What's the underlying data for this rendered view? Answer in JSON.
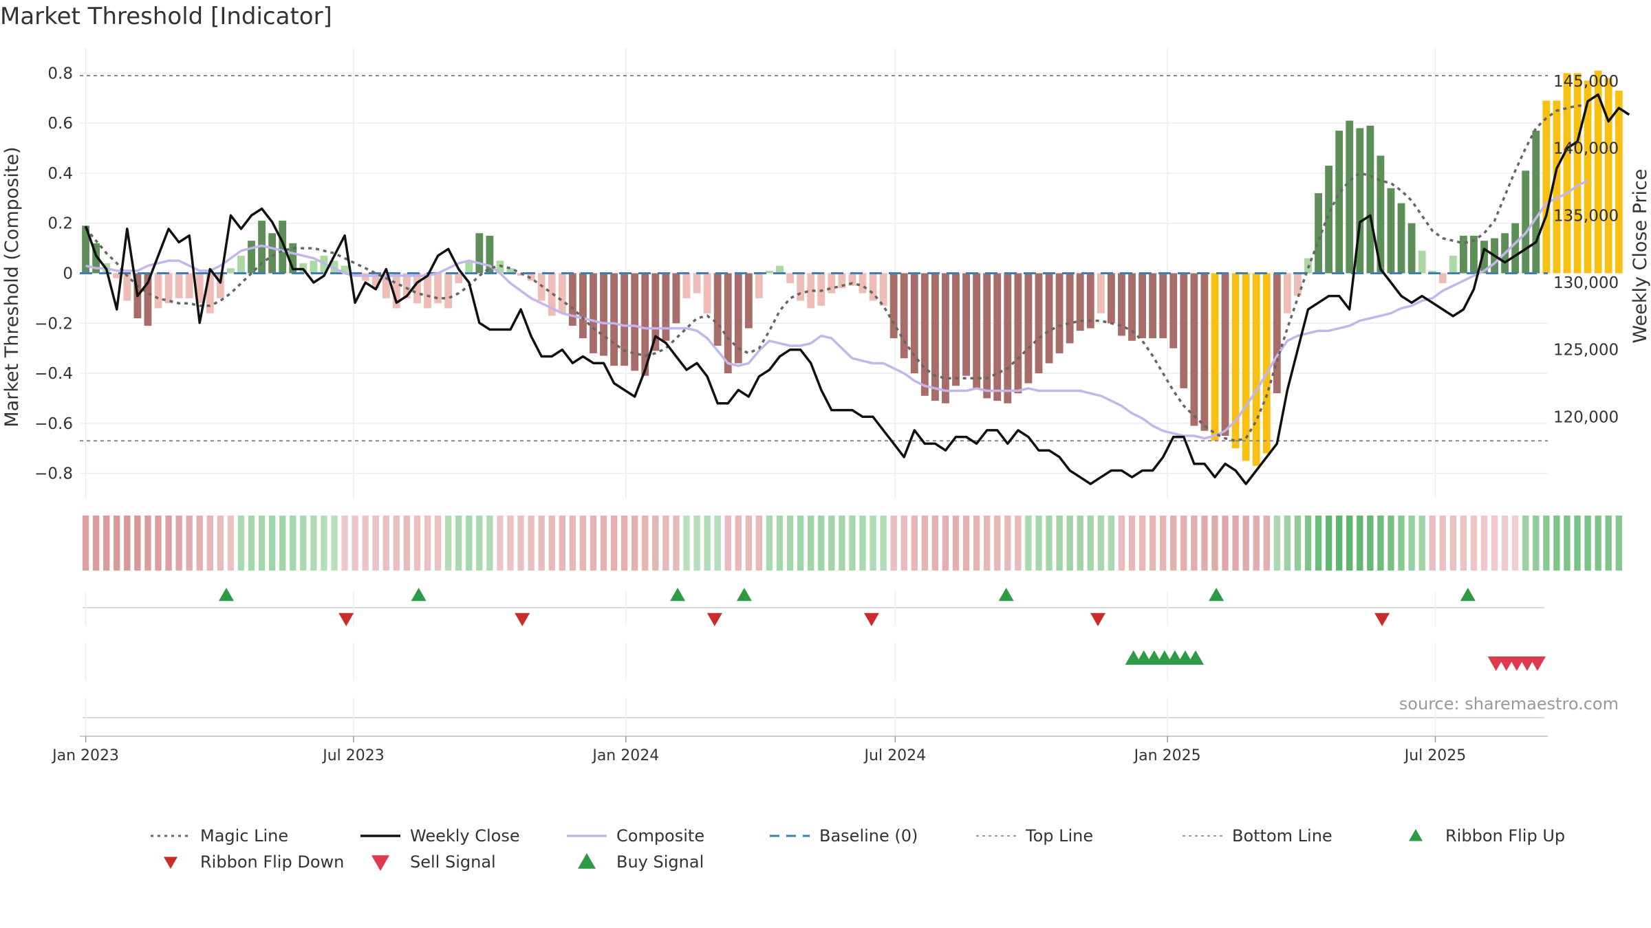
{
  "title": "Market Threshold [Indicator]",
  "source": "source: sharemaestro.com",
  "colors": {
    "weekly_close": "#111111",
    "composite": "#c3b6ec",
    "magic_line": "#666666",
    "baseline": "#3d7fb0",
    "top_bottom_line": "#888888",
    "bar_strong_neg": "#a86d68",
    "bar_weak_neg": "#efbdb7",
    "bar_strong_pos": "#5e8f58",
    "bar_weak_pos": "#acd8a4",
    "bar_extreme": "#f7c012",
    "flip_up": "#2e9a45",
    "flip_down": "#cc2b2b",
    "sell": "#de3a4b",
    "buy": "#2e9a45"
  },
  "legend": [
    {
      "label": "Magic Line",
      "icon": "dotted-line"
    },
    {
      "label": "Weekly Close",
      "icon": "solid-line"
    },
    {
      "label": "Composite",
      "icon": "solid-line-light"
    },
    {
      "label": "Baseline (0)",
      "icon": "dashed-line"
    },
    {
      "label": "Top Line",
      "icon": "dotted-line-light"
    },
    {
      "label": "Bottom Line",
      "icon": "dotted-line-light"
    },
    {
      "label": "Ribbon Flip Up",
      "icon": "triangle-up"
    },
    {
      "label": "Ribbon Flip Down",
      "icon": "triangle-down"
    },
    {
      "label": "Sell Signal",
      "icon": "triangle-down"
    },
    {
      "label": "Buy Signal",
      "icon": "triangle-up"
    }
  ],
  "chart_data": {
    "type": "bar",
    "x_axis": {
      "type": "date",
      "range": [
        "2022-12-28",
        "2025-09-15"
      ],
      "ticks": [
        "2023-01-01",
        "2023-07-01",
        "2024-01-01",
        "2024-07-01",
        "2025-01-01",
        "2025-07-01"
      ],
      "tick_labels": [
        "Jan 2023",
        "Jul 2023",
        "Jan 2024",
        "Jul 2024",
        "Jan 2025",
        "Jul 2025"
      ]
    },
    "y_left": {
      "label": "Market Threshold (Composite)",
      "range": [
        -0.9,
        0.9
      ],
      "ticks": [
        -0.8,
        -0.6,
        -0.4,
        -0.2,
        0,
        0.2,
        0.4,
        0.6,
        0.8
      ],
      "tick_labels": [
        "−0.8",
        "−0.6",
        "−0.4",
        "−0.2",
        "0",
        "0.2",
        "0.4",
        "0.6",
        "0.8"
      ]
    },
    "y_right": {
      "label": "Weekly Close Price",
      "range": [
        113925,
        147460
      ],
      "ticks": [
        120000,
        125000,
        130000,
        135000,
        140000,
        145000
      ],
      "tick_labels": [
        "120,000",
        "125,000",
        "130,000",
        "135,000",
        "140,000",
        "145,000"
      ]
    },
    "grid": true,
    "top_line": 0.79,
    "bottom_line": -0.67,
    "baseline": 0,
    "series": [
      {
        "name": "Histogram",
        "start_date": "2023-01-01",
        "step_days": 7,
        "values": [
          0.19,
          0.12,
          0.04,
          -0.02,
          -0.11,
          -0.18,
          -0.21,
          -0.14,
          -0.12,
          -0.1,
          -0.1,
          -0.12,
          -0.16,
          -0.1,
          0.02,
          0.07,
          0.13,
          0.21,
          0.16,
          0.21,
          0.12,
          0.04,
          0.05,
          0.07,
          0.05,
          0.03,
          -0.01,
          -0.03,
          -0.06,
          -0.1,
          -0.14,
          -0.1,
          -0.12,
          -0.14,
          -0.12,
          -0.14,
          -0.04,
          0.05,
          0.16,
          0.15,
          0.05,
          0.02,
          -0.01,
          -0.03,
          -0.11,
          -0.17,
          -0.16,
          -0.21,
          -0.26,
          -0.32,
          -0.33,
          -0.37,
          -0.37,
          -0.39,
          -0.41,
          -0.31,
          -0.27,
          -0.2,
          -0.1,
          -0.08,
          -0.16,
          -0.29,
          -0.4,
          -0.36,
          -0.22,
          -0.1,
          0.01,
          0.03,
          -0.04,
          -0.11,
          -0.14,
          -0.13,
          -0.08,
          -0.06,
          -0.05,
          -0.08,
          -0.11,
          -0.13,
          -0.26,
          -0.34,
          -0.4,
          -0.49,
          -0.51,
          -0.52,
          -0.45,
          -0.41,
          -0.46,
          -0.5,
          -0.51,
          -0.52,
          -0.48,
          -0.44,
          -0.4,
          -0.36,
          -0.32,
          -0.28,
          -0.23,
          -0.22,
          -0.16,
          -0.2,
          -0.25,
          -0.27,
          -0.26,
          -0.26,
          -0.26,
          -0.3,
          -0.46,
          -0.61,
          -0.63,
          -0.67,
          -0.65,
          -0.7,
          -0.75,
          -0.77,
          -0.72,
          -0.48,
          -0.16,
          -0.09,
          0.06,
          0.32,
          0.43,
          0.57,
          0.61,
          0.58,
          0.59,
          0.47,
          0.34,
          0.28,
          0.2,
          0.09,
          0.01,
          -0.04,
          0.07,
          0.15,
          0.15,
          0.13,
          0.14,
          0.16,
          0.2,
          0.41,
          0.57,
          0.69,
          0.69,
          0.8,
          0.8,
          0.77,
          0.81,
          0.78,
          0.73
        ]
      },
      {
        "name": "Weekly Close",
        "start_date": "2023-01-01",
        "step_days": 7,
        "values": [
          134200,
          132000,
          131000,
          128000,
          134000,
          129000,
          130000,
          132000,
          134000,
          133000,
          133500,
          127000,
          131000,
          130000,
          135000,
          134000,
          135000,
          135500,
          134500,
          133000,
          131000,
          131000,
          130000,
          130500,
          132000,
          133500,
          128500,
          130000,
          129500,
          131000,
          128500,
          129000,
          130000,
          130500,
          132000,
          132500,
          131000,
          130000,
          127000,
          126500,
          126500,
          126500,
          128000,
          126000,
          124500,
          124500,
          125000,
          124000,
          124500,
          124000,
          124000,
          122500,
          122000,
          121500,
          123500,
          126000,
          125500,
          124500,
          123500,
          124000,
          123000,
          121000,
          121000,
          122000,
          121500,
          123000,
          123500,
          124500,
          125000,
          125000,
          124000,
          122000,
          120500,
          120500,
          120500,
          120000,
          120000,
          119000,
          118000,
          117000,
          119000,
          118000,
          118000,
          117500,
          118500,
          118500,
          118000,
          119000,
          119000,
          118000,
          119000,
          118500,
          117500,
          117500,
          117000,
          116000,
          115500,
          115000,
          115500,
          116000,
          116000,
          115500,
          116000,
          116000,
          117000,
          118500,
          118500,
          116500,
          116500,
          115500,
          116500,
          116000,
          115000,
          116000,
          117000,
          118000,
          122000,
          125000,
          128000,
          128500,
          129000,
          129000,
          128000,
          134500,
          135000,
          131000,
          130000,
          129000,
          128500,
          129000,
          128500,
          128000,
          127500,
          128000,
          129500,
          132500,
          132000,
          131500,
          132000,
          132500,
          133000,
          135000,
          138500,
          140000,
          140500,
          143500,
          144000,
          142000,
          143000,
          142500
        ]
      },
      {
        "name": "Composite",
        "start_date": "2023-01-01",
        "step_days": 7,
        "values": [
          0.03,
          0.02,
          0.02,
          0.01,
          0.01,
          0.01,
          0.03,
          0.04,
          0.05,
          0.05,
          0.03,
          0.01,
          0.01,
          0.03,
          0.06,
          0.09,
          0.1,
          0.11,
          0.1,
          0.09,
          0.08,
          0.07,
          0.06,
          0.04,
          0.02,
          0.0,
          -0.01,
          -0.01,
          -0.01,
          -0.01,
          -0.01,
          -0.01,
          -0.01,
          -0.01,
          0.0,
          0.02,
          0.04,
          0.05,
          0.04,
          0.03,
          0.0,
          -0.04,
          -0.07,
          -0.1,
          -0.12,
          -0.14,
          -0.16,
          -0.17,
          -0.18,
          -0.19,
          -0.2,
          -0.2,
          -0.21,
          -0.21,
          -0.22,
          -0.22,
          -0.22,
          -0.22,
          -0.22,
          -0.23,
          -0.26,
          -0.31,
          -0.36,
          -0.37,
          -0.36,
          -0.31,
          -0.27,
          -0.28,
          -0.29,
          -0.29,
          -0.28,
          -0.25,
          -0.26,
          -0.3,
          -0.34,
          -0.35,
          -0.36,
          -0.36,
          -0.38,
          -0.4,
          -0.43,
          -0.45,
          -0.46,
          -0.47,
          -0.47,
          -0.47,
          -0.46,
          -0.47,
          -0.47,
          -0.47,
          -0.47,
          -0.46,
          -0.47,
          -0.47,
          -0.47,
          -0.47,
          -0.47,
          -0.48,
          -0.49,
          -0.51,
          -0.53,
          -0.56,
          -0.58,
          -0.61,
          -0.63,
          -0.64,
          -0.65,
          -0.65,
          -0.66,
          -0.65,
          -0.63,
          -0.59,
          -0.53,
          -0.47,
          -0.4,
          -0.33,
          -0.27,
          -0.25,
          -0.24,
          -0.23,
          -0.23,
          -0.22,
          -0.21,
          -0.19,
          -0.18,
          -0.17,
          -0.16,
          -0.14,
          -0.13,
          -0.11,
          -0.1,
          -0.07,
          -0.05,
          -0.03,
          -0.01,
          0.01,
          0.04,
          0.08,
          0.12,
          0.16,
          0.22,
          0.28,
          0.3,
          0.32,
          0.35,
          0.37
        ]
      },
      {
        "name": "Magic Line",
        "start_date": "2023-01-01",
        "step_days": 7,
        "values": [
          0.18,
          0.13,
          0.08,
          0.04,
          -0.01,
          -0.05,
          -0.08,
          -0.1,
          -0.11,
          -0.12,
          -0.12,
          -0.13,
          -0.13,
          -0.11,
          -0.08,
          -0.04,
          0.0,
          0.04,
          0.07,
          0.09,
          0.1,
          0.1,
          0.1,
          0.09,
          0.08,
          0.06,
          0.04,
          0.02,
          0.0,
          -0.02,
          -0.04,
          -0.06,
          -0.08,
          -0.09,
          -0.1,
          -0.1,
          -0.08,
          -0.05,
          -0.01,
          0.02,
          0.03,
          0.02,
          0.0,
          -0.02,
          -0.05,
          -0.08,
          -0.11,
          -0.14,
          -0.18,
          -0.22,
          -0.25,
          -0.28,
          -0.31,
          -0.32,
          -0.33,
          -0.32,
          -0.3,
          -0.26,
          -0.22,
          -0.18,
          -0.17,
          -0.2,
          -0.26,
          -0.3,
          -0.32,
          -0.3,
          -0.23,
          -0.15,
          -0.1,
          -0.08,
          -0.07,
          -0.07,
          -0.06,
          -0.05,
          -0.04,
          -0.05,
          -0.08,
          -0.13,
          -0.2,
          -0.27,
          -0.33,
          -0.38,
          -0.41,
          -0.42,
          -0.42,
          -0.42,
          -0.42,
          -0.42,
          -0.4,
          -0.38,
          -0.34,
          -0.3,
          -0.26,
          -0.23,
          -0.21,
          -0.2,
          -0.19,
          -0.19,
          -0.19,
          -0.2,
          -0.21,
          -0.23,
          -0.27,
          -0.33,
          -0.4,
          -0.47,
          -0.53,
          -0.57,
          -0.61,
          -0.64,
          -0.66,
          -0.67,
          -0.66,
          -0.59,
          -0.49,
          -0.35,
          -0.22,
          -0.1,
          0.02,
          0.13,
          0.24,
          0.32,
          0.37,
          0.4,
          0.39,
          0.37,
          0.36,
          0.33,
          0.29,
          0.23,
          0.17,
          0.14,
          0.13,
          0.12,
          0.13,
          0.16,
          0.21,
          0.31,
          0.41,
          0.5,
          0.58,
          0.62,
          0.65,
          0.66,
          0.67,
          0.67
        ]
      }
    ],
    "ribbon": {
      "start_date": "2023-01-01",
      "step_days": 7,
      "values": [
        -0.55,
        -0.58,
        -0.6,
        -0.62,
        -0.62,
        -0.62,
        -0.6,
        -0.58,
        -0.55,
        -0.5,
        -0.45,
        -0.4,
        -0.35,
        -0.3,
        -0.25,
        0.3,
        0.32,
        0.34,
        0.36,
        0.35,
        0.33,
        0.3,
        0.28,
        0.25,
        0.22,
        -0.2,
        -0.21,
        -0.22,
        -0.24,
        -0.26,
        -0.28,
        -0.3,
        -0.28,
        -0.26,
        -0.24,
        0.25,
        0.3,
        0.32,
        0.3,
        0.28,
        -0.22,
        -0.24,
        -0.26,
        -0.28,
        -0.3,
        -0.32,
        -0.34,
        -0.35,
        -0.36,
        -0.38,
        -0.4,
        -0.42,
        -0.42,
        -0.4,
        -0.38,
        -0.36,
        -0.34,
        -0.32,
        0.22,
        0.24,
        0.26,
        0.24,
        -0.3,
        -0.32,
        -0.34,
        -0.32,
        0.3,
        0.32,
        0.34,
        0.36,
        0.36,
        0.36,
        0.35,
        0.34,
        0.32,
        0.3,
        0.28,
        0.26,
        -0.28,
        -0.3,
        -0.34,
        -0.38,
        -0.4,
        -0.42,
        -0.42,
        -0.4,
        -0.38,
        -0.36,
        -0.34,
        -0.32,
        -0.3,
        0.3,
        0.32,
        0.34,
        0.36,
        0.36,
        0.36,
        0.34,
        0.32,
        0.3,
        -0.3,
        -0.32,
        -0.34,
        -0.36,
        -0.38,
        -0.4,
        -0.42,
        -0.44,
        -0.45,
        -0.46,
        -0.47,
        -0.47,
        -0.46,
        -0.44,
        -0.42,
        0.3,
        0.38,
        0.46,
        0.56,
        0.66,
        0.72,
        0.74,
        0.74,
        0.72,
        0.7,
        0.66,
        0.6,
        0.5,
        0.42,
        0.36,
        -0.28,
        -0.27,
        -0.26,
        -0.24,
        -0.22,
        -0.2,
        -0.18,
        -0.16,
        -0.14,
        0.4,
        0.45,
        0.5,
        0.55,
        0.58,
        0.58,
        0.58,
        0.56,
        0.55,
        0.52
      ]
    },
    "ribbon_flip_up": [
      "2023-04-06",
      "2023-08-14",
      "2024-02-05",
      "2024-03-21",
      "2024-09-14",
      "2025-02-03",
      "2025-07-23"
    ],
    "ribbon_flip_down": [
      "2023-06-26",
      "2023-10-23",
      "2024-03-01",
      "2024-06-15",
      "2024-11-15",
      "2025-05-26"
    ],
    "buy_signal": [
      "2024-12-09",
      "2024-12-16",
      "2024-12-23",
      "2024-12-30",
      "2025-01-06",
      "2025-01-13",
      "2025-01-20"
    ],
    "sell_signal": [
      "2025-08-11",
      "2025-08-18",
      "2025-08-25",
      "2025-09-01",
      "2025-09-08"
    ]
  }
}
